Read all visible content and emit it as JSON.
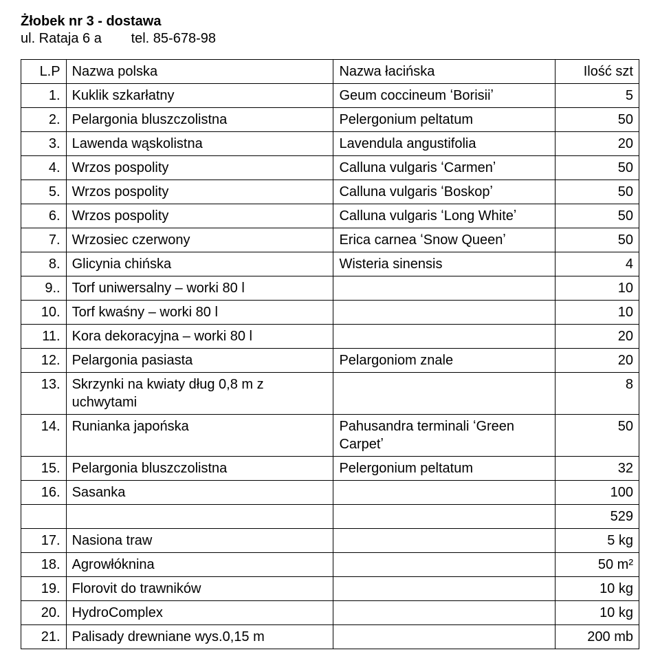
{
  "header": {
    "title": "Żłobek nr 3 - dostawa",
    "address": "ul. Rataja 6 a",
    "phone_label": "tel. 85-678-98"
  },
  "table": {
    "columns": {
      "lp": "L.P",
      "pl": "Nazwa polska",
      "la": "Nazwa łacińska",
      "qty": "Ilość szt"
    },
    "rows": [
      {
        "lp": "1.",
        "pl": "Kuklik szkarłatny",
        "la": "Geum coccineum ʻBorisiiʼ",
        "qty": "5"
      },
      {
        "lp": "2.",
        "pl": "Pelargonia bluszczolistna",
        "la": "Pelergonium peltatum",
        "qty": "50"
      },
      {
        "lp": "3.",
        "pl": "Lawenda wąskolistna",
        "la": "Lavendula angustifolia",
        "qty": "20"
      },
      {
        "lp": "4.",
        "pl": "Wrzos pospolity",
        "la": "Calluna vulgaris ʻCarmenʼ",
        "qty": "50"
      },
      {
        "lp": "5.",
        "pl": "Wrzos pospolity",
        "la": "Calluna vulgaris ʻBoskopʼ",
        "qty": "50"
      },
      {
        "lp": "6.",
        "pl": "Wrzos pospolity",
        "la": "Calluna vulgaris ʻLong Whiteʼ",
        "qty": "50"
      },
      {
        "lp": "7.",
        "pl": "Wrzosiec czerwony",
        "la": "Erica carnea ʻSnow Queenʼ",
        "qty": "50"
      },
      {
        "lp": "8.",
        "pl": "Glicynia chińska",
        "la": "Wisteria sinensis",
        "qty": "4"
      },
      {
        "lp": "9..",
        "pl": "Torf uniwersalny – worki 80 l",
        "la": "",
        "qty": "10"
      },
      {
        "lp": "10.",
        "pl": "Torf kwaśny – worki 80 l",
        "la": "",
        "qty": "10"
      },
      {
        "lp": "11.",
        "pl": "Kora dekoracyjna – worki 80 l",
        "la": "",
        "qty": "20"
      },
      {
        "lp": "12.",
        "pl": "Pelargonia pasiasta",
        "la": "Pelargoniom znale",
        "qty": "20"
      },
      {
        "lp": "13.",
        "pl": "Skrzynki na kwiaty dług 0,8 m z uchwytami",
        "la": "",
        "qty": "8"
      },
      {
        "lp": "14.",
        "pl": "Runianka japońska",
        "la": "Pahusandra terminali ʻGreen Carpetʼ",
        "qty": "50"
      },
      {
        "lp": "15.",
        "pl": "Pelargonia bluszczolistna",
        "la": "Pelergonium peltatum",
        "qty": "32"
      },
      {
        "lp": "16.",
        "pl": "Sasanka",
        "la": "",
        "qty": "100"
      },
      {
        "lp": "",
        "pl": "",
        "la": "",
        "qty": "529"
      },
      {
        "lp": "17.",
        "pl": "Nasiona traw",
        "la": "",
        "qty": "5 kg"
      },
      {
        "lp": "18.",
        "pl": "Agrowłóknina",
        "la": "",
        "qty": "50 m²"
      },
      {
        "lp": "19.",
        "pl": "Florovit do trawników",
        "la": "",
        "qty": "10 kg"
      },
      {
        "lp": "20.",
        "pl": "HydroComplex",
        "la": "",
        "qty": "10 kg"
      },
      {
        "lp": "21.",
        "pl": "Palisady drewniane wys.0,15 m",
        "la": "",
        "qty": "200 mb"
      }
    ]
  }
}
